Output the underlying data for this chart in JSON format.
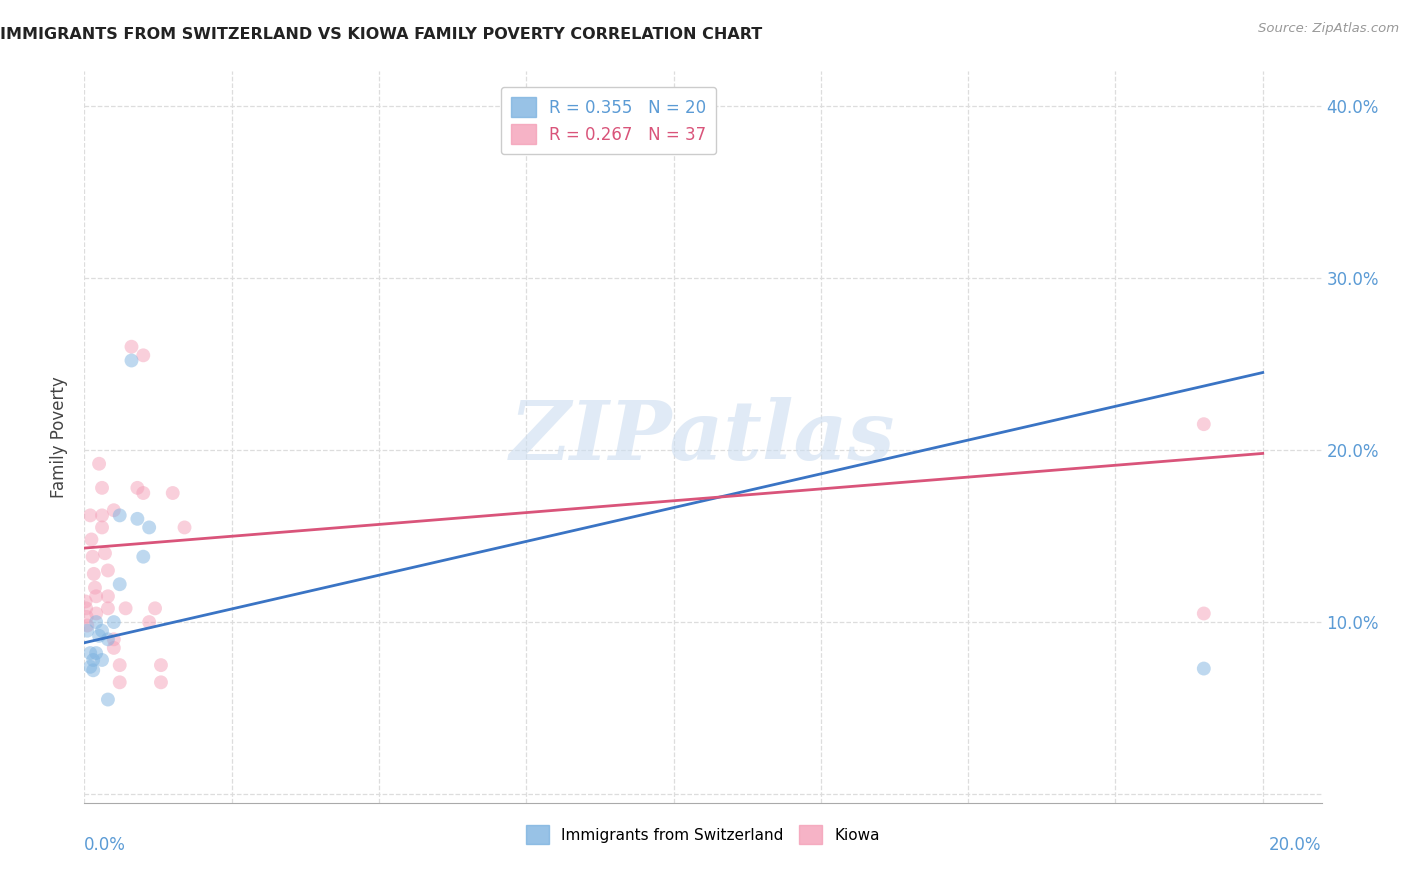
{
  "title": "IMMIGRANTS FROM SWITZERLAND VS KIOWA FAMILY POVERTY CORRELATION CHART",
  "source": "Source: ZipAtlas.com",
  "ylabel": "Family Poverty",
  "xlim": [
    0.0,
    0.21
  ],
  "ylim": [
    -0.005,
    0.42
  ],
  "legend_label1": "R = 0.355   N = 20",
  "legend_label2": "R = 0.267   N = 37",
  "legend_color1": "#7eb3e0",
  "legend_color2": "#f4a0b8",
  "watermark_text": "ZIPatlas",
  "blue_scatter": [
    [
      0.0005,
      0.095
    ],
    [
      0.001,
      0.082
    ],
    [
      0.0015,
      0.078
    ],
    [
      0.001,
      0.074
    ],
    [
      0.002,
      0.1
    ],
    [
      0.0025,
      0.092
    ],
    [
      0.002,
      0.082
    ],
    [
      0.0015,
      0.072
    ],
    [
      0.003,
      0.095
    ],
    [
      0.003,
      0.078
    ],
    [
      0.004,
      0.055
    ],
    [
      0.004,
      0.09
    ],
    [
      0.005,
      0.1
    ],
    [
      0.006,
      0.162
    ],
    [
      0.006,
      0.122
    ],
    [
      0.008,
      0.252
    ],
    [
      0.009,
      0.16
    ],
    [
      0.01,
      0.138
    ],
    [
      0.011,
      0.155
    ],
    [
      0.19,
      0.073
    ]
  ],
  "pink_scatter": [
    [
      0.0002,
      0.112
    ],
    [
      0.0003,
      0.108
    ],
    [
      0.0004,
      0.103
    ],
    [
      0.0005,
      0.098
    ],
    [
      0.001,
      0.162
    ],
    [
      0.0012,
      0.148
    ],
    [
      0.0014,
      0.138
    ],
    [
      0.0016,
      0.128
    ],
    [
      0.0018,
      0.12
    ],
    [
      0.002,
      0.115
    ],
    [
      0.002,
      0.105
    ],
    [
      0.0025,
      0.192
    ],
    [
      0.003,
      0.178
    ],
    [
      0.003,
      0.162
    ],
    [
      0.003,
      0.155
    ],
    [
      0.0035,
      0.14
    ],
    [
      0.004,
      0.13
    ],
    [
      0.004,
      0.115
    ],
    [
      0.004,
      0.108
    ],
    [
      0.005,
      0.09
    ],
    [
      0.005,
      0.085
    ],
    [
      0.005,
      0.165
    ],
    [
      0.006,
      0.075
    ],
    [
      0.006,
      0.065
    ],
    [
      0.007,
      0.108
    ],
    [
      0.008,
      0.26
    ],
    [
      0.009,
      0.178
    ],
    [
      0.01,
      0.255
    ],
    [
      0.01,
      0.175
    ],
    [
      0.011,
      0.1
    ],
    [
      0.012,
      0.108
    ],
    [
      0.013,
      0.065
    ],
    [
      0.013,
      0.075
    ],
    [
      0.015,
      0.175
    ],
    [
      0.017,
      0.155
    ],
    [
      0.19,
      0.215
    ],
    [
      0.19,
      0.105
    ]
  ],
  "blue_line": [
    0.0,
    0.088,
    0.2,
    0.245
  ],
  "pink_line": [
    0.0,
    0.143,
    0.2,
    0.198
  ],
  "yticks": [
    0.0,
    0.1,
    0.2,
    0.3,
    0.4
  ],
  "xtick_positions": [
    0.0,
    0.025,
    0.05,
    0.075,
    0.1,
    0.125,
    0.15,
    0.175,
    0.2
  ],
  "background_color": "#ffffff",
  "grid_color": "#dddddd",
  "scatter_size": 100,
  "scatter_alpha": 0.5,
  "line_width": 2.0,
  "blue_line_color": "#3a74c4",
  "pink_line_color": "#d9547a"
}
